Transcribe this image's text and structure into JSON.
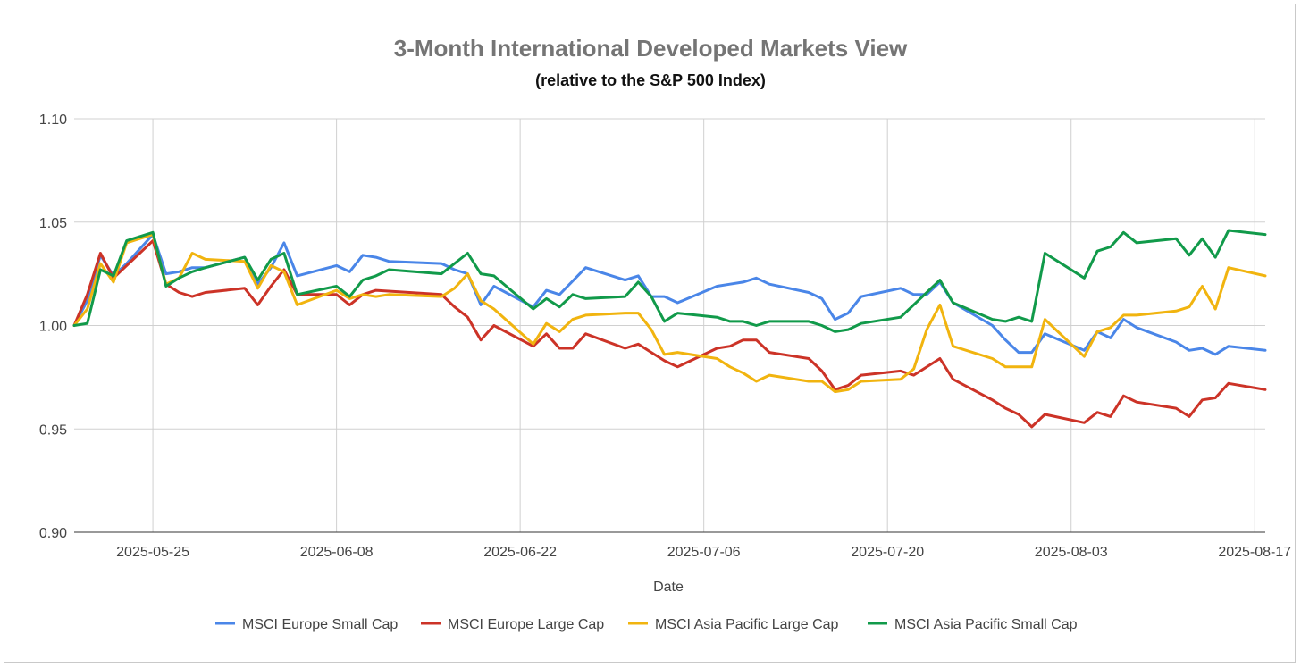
{
  "chart_data": {
    "type": "line",
    "title": "3-Month International Developed Markets View",
    "subtitle": "(relative to the S&P 500 Index)",
    "xlabel": "Date",
    "ylabel": "",
    "ylim": [
      0.9,
      1.1
    ],
    "yticks": [
      "0.90",
      "0.95",
      "1.00",
      "1.05",
      "1.10"
    ],
    "ytick_values": [
      0.9,
      0.95,
      1.0,
      1.05,
      1.1
    ],
    "xticks": [
      "2025-05-25",
      "2025-06-08",
      "2025-06-22",
      "2025-07-06",
      "2025-07-20",
      "2025-08-03",
      "2025-08-17"
    ],
    "xtick_days": [
      6,
      20,
      34,
      48,
      62,
      76,
      90
    ],
    "x_range_days": [
      0,
      90.8
    ],
    "x_origin": "2025-05-19",
    "grid": true,
    "legend_position": "bottom",
    "series": [
      {
        "name": "MSCI Europe Small Cap",
        "color": "#4a86e8",
        "points": [
          [
            0,
            1.0
          ],
          [
            1,
            1.012
          ],
          [
            2,
            1.034
          ],
          [
            3,
            1.024
          ],
          [
            4,
            1.03
          ],
          [
            6,
            1.044
          ],
          [
            7,
            1.025
          ],
          [
            8,
            1.026
          ],
          [
            9,
            1.028
          ],
          [
            10,
            1.028
          ],
          [
            13,
            1.033
          ],
          [
            14,
            1.02
          ],
          [
            15,
            1.028
          ],
          [
            16,
            1.04
          ],
          [
            17,
            1.024
          ],
          [
            20,
            1.029
          ],
          [
            21,
            1.026
          ],
          [
            22,
            1.034
          ],
          [
            23,
            1.033
          ],
          [
            24,
            1.031
          ],
          [
            28,
            1.03
          ],
          [
            29,
            1.027
          ],
          [
            30,
            1.025
          ],
          [
            31,
            1.01
          ],
          [
            32,
            1.019
          ],
          [
            35,
            1.009
          ],
          [
            36,
            1.017
          ],
          [
            37,
            1.015
          ],
          [
            39,
            1.028
          ],
          [
            42,
            1.022
          ],
          [
            43,
            1.024
          ],
          [
            44,
            1.014
          ],
          [
            45,
            1.014
          ],
          [
            46,
            1.011
          ],
          [
            49,
            1.019
          ],
          [
            50,
            1.02
          ],
          [
            51,
            1.021
          ],
          [
            52,
            1.023
          ],
          [
            53,
            1.02
          ],
          [
            56,
            1.016
          ],
          [
            57,
            1.013
          ],
          [
            58,
            1.003
          ],
          [
            59,
            1.006
          ],
          [
            60,
            1.014
          ],
          [
            63,
            1.018
          ],
          [
            64,
            1.015
          ],
          [
            65,
            1.015
          ],
          [
            66,
            1.021
          ],
          [
            67,
            1.011
          ],
          [
            70,
            1.0
          ],
          [
            71,
            0.993
          ],
          [
            72,
            0.987
          ],
          [
            73,
            0.987
          ],
          [
            74,
            0.996
          ],
          [
            77,
            0.988
          ],
          [
            78,
            0.997
          ],
          [
            79,
            0.994
          ],
          [
            80,
            1.003
          ],
          [
            81,
            0.999
          ],
          [
            84,
            0.992
          ],
          [
            85,
            0.988
          ],
          [
            86,
            0.989
          ],
          [
            87,
            0.986
          ],
          [
            88,
            0.99
          ],
          [
            90.8,
            0.988
          ]
        ]
      },
      {
        "name": "MSCI Europe Large Cap",
        "color": "#cc3327",
        "points": [
          [
            0,
            1.0
          ],
          [
            1,
            1.015
          ],
          [
            2,
            1.035
          ],
          [
            3,
            1.023
          ],
          [
            6,
            1.041
          ],
          [
            7,
            1.02
          ],
          [
            8,
            1.016
          ],
          [
            9,
            1.014
          ],
          [
            10,
            1.016
          ],
          [
            13,
            1.018
          ],
          [
            14,
            1.01
          ],
          [
            15,
            1.019
          ],
          [
            16,
            1.027
          ],
          [
            17,
            1.015
          ],
          [
            20,
            1.015
          ],
          [
            21,
            1.01
          ],
          [
            22,
            1.015
          ],
          [
            23,
            1.017
          ],
          [
            28,
            1.015
          ],
          [
            29,
            1.009
          ],
          [
            30,
            1.004
          ],
          [
            31,
            0.993
          ],
          [
            32,
            1.0
          ],
          [
            35,
            0.99
          ],
          [
            36,
            0.996
          ],
          [
            37,
            0.989
          ],
          [
            38,
            0.989
          ],
          [
            39,
            0.996
          ],
          [
            42,
            0.989
          ],
          [
            43,
            0.991
          ],
          [
            44,
            0.987
          ],
          [
            45,
            0.983
          ],
          [
            46,
            0.98
          ],
          [
            49,
            0.989
          ],
          [
            50,
            0.99
          ],
          [
            51,
            0.993
          ],
          [
            52,
            0.993
          ],
          [
            53,
            0.987
          ],
          [
            56,
            0.984
          ],
          [
            57,
            0.978
          ],
          [
            58,
            0.969
          ],
          [
            59,
            0.971
          ],
          [
            60,
            0.976
          ],
          [
            63,
            0.978
          ],
          [
            64,
            0.976
          ],
          [
            66,
            0.984
          ],
          [
            67,
            0.974
          ],
          [
            70,
            0.964
          ],
          [
            71,
            0.96
          ],
          [
            72,
            0.957
          ],
          [
            73,
            0.951
          ],
          [
            74,
            0.957
          ],
          [
            77,
            0.953
          ],
          [
            78,
            0.958
          ],
          [
            79,
            0.956
          ],
          [
            80,
            0.966
          ],
          [
            81,
            0.963
          ],
          [
            84,
            0.96
          ],
          [
            85,
            0.956
          ],
          [
            86,
            0.964
          ],
          [
            87,
            0.965
          ],
          [
            88,
            0.972
          ],
          [
            90.8,
            0.969
          ]
        ]
      },
      {
        "name": "MSCI Asia Pacific Large Cap",
        "color": "#f1b40f",
        "points": [
          [
            0,
            1.0
          ],
          [
            1,
            1.008
          ],
          [
            2,
            1.03
          ],
          [
            3,
            1.021
          ],
          [
            4,
            1.04
          ],
          [
            6,
            1.044
          ],
          [
            7,
            1.02
          ],
          [
            8,
            1.023
          ],
          [
            9,
            1.035
          ],
          [
            10,
            1.032
          ],
          [
            13,
            1.031
          ],
          [
            14,
            1.018
          ],
          [
            15,
            1.029
          ],
          [
            16,
            1.026
          ],
          [
            17,
            1.01
          ],
          [
            20,
            1.017
          ],
          [
            21,
            1.013
          ],
          [
            22,
            1.015
          ],
          [
            23,
            1.014
          ],
          [
            24,
            1.015
          ],
          [
            28,
            1.014
          ],
          [
            29,
            1.018
          ],
          [
            30,
            1.025
          ],
          [
            31,
            1.012
          ],
          [
            32,
            1.008
          ],
          [
            35,
            0.991
          ],
          [
            36,
            1.001
          ],
          [
            37,
            0.997
          ],
          [
            38,
            1.003
          ],
          [
            39,
            1.005
          ],
          [
            42,
            1.006
          ],
          [
            43,
            1.006
          ],
          [
            44,
            0.998
          ],
          [
            45,
            0.986
          ],
          [
            46,
            0.987
          ],
          [
            49,
            0.984
          ],
          [
            50,
            0.98
          ],
          [
            51,
            0.977
          ],
          [
            52,
            0.973
          ],
          [
            53,
            0.976
          ],
          [
            56,
            0.973
          ],
          [
            57,
            0.973
          ],
          [
            58,
            0.968
          ],
          [
            59,
            0.969
          ],
          [
            60,
            0.973
          ],
          [
            63,
            0.974
          ],
          [
            64,
            0.979
          ],
          [
            65,
            0.998
          ],
          [
            66,
            1.01
          ],
          [
            67,
            0.99
          ],
          [
            70,
            0.984
          ],
          [
            71,
            0.98
          ],
          [
            72,
            0.98
          ],
          [
            73,
            0.98
          ],
          [
            74,
            1.003
          ],
          [
            77,
            0.985
          ],
          [
            78,
            0.997
          ],
          [
            79,
            0.999
          ],
          [
            80,
            1.005
          ],
          [
            81,
            1.005
          ],
          [
            84,
            1.007
          ],
          [
            85,
            1.009
          ],
          [
            86,
            1.019
          ],
          [
            87,
            1.008
          ],
          [
            88,
            1.028
          ],
          [
            90.8,
            1.024
          ]
        ]
      },
      {
        "name": "MSCI Asia Pacific Small Cap",
        "color": "#119a4a",
        "points": [
          [
            0,
            1.0
          ],
          [
            1,
            1.001
          ],
          [
            2,
            1.027
          ],
          [
            3,
            1.024
          ],
          [
            4,
            1.041
          ],
          [
            6,
            1.045
          ],
          [
            7,
            1.019
          ],
          [
            8,
            1.023
          ],
          [
            9,
            1.026
          ],
          [
            10,
            1.028
          ],
          [
            13,
            1.033
          ],
          [
            14,
            1.022
          ],
          [
            15,
            1.032
          ],
          [
            16,
            1.035
          ],
          [
            17,
            1.015
          ],
          [
            20,
            1.019
          ],
          [
            21,
            1.014
          ],
          [
            22,
            1.022
          ],
          [
            23,
            1.024
          ],
          [
            24,
            1.027
          ],
          [
            28,
            1.025
          ],
          [
            29,
            1.03
          ],
          [
            30,
            1.035
          ],
          [
            31,
            1.025
          ],
          [
            32,
            1.024
          ],
          [
            35,
            1.008
          ],
          [
            36,
            1.013
          ],
          [
            37,
            1.009
          ],
          [
            38,
            1.015
          ],
          [
            39,
            1.013
          ],
          [
            42,
            1.014
          ],
          [
            43,
            1.021
          ],
          [
            44,
            1.014
          ],
          [
            45,
            1.002
          ],
          [
            46,
            1.006
          ],
          [
            49,
            1.004
          ],
          [
            50,
            1.002
          ],
          [
            51,
            1.002
          ],
          [
            52,
            1.0
          ],
          [
            53,
            1.002
          ],
          [
            56,
            1.002
          ],
          [
            57,
            1.0
          ],
          [
            58,
            0.997
          ],
          [
            59,
            0.998
          ],
          [
            60,
            1.001
          ],
          [
            63,
            1.004
          ],
          [
            65,
            1.016
          ],
          [
            66,
            1.022
          ],
          [
            67,
            1.011
          ],
          [
            70,
            1.003
          ],
          [
            71,
            1.002
          ],
          [
            72,
            1.004
          ],
          [
            73,
            1.002
          ],
          [
            74,
            1.035
          ],
          [
            77,
            1.023
          ],
          [
            78,
            1.036
          ],
          [
            79,
            1.038
          ],
          [
            80,
            1.045
          ],
          [
            81,
            1.04
          ],
          [
            84,
            1.042
          ],
          [
            85,
            1.034
          ],
          [
            86,
            1.042
          ],
          [
            87,
            1.033
          ],
          [
            88,
            1.046
          ],
          [
            90.8,
            1.044
          ]
        ]
      }
    ]
  }
}
